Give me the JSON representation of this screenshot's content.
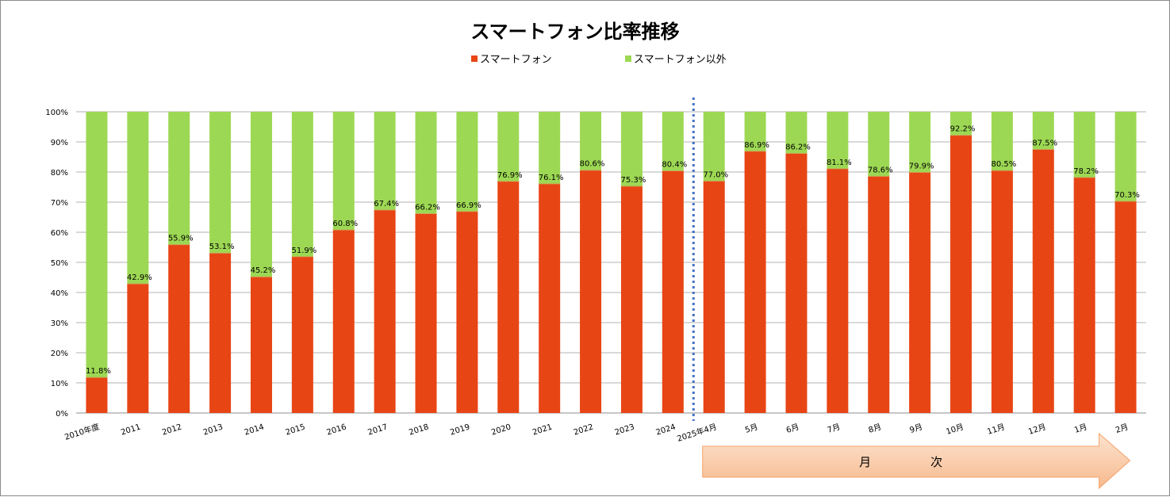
{
  "chart_data": {
    "type": "bar",
    "stacked": true,
    "percent_stacked": true,
    "title": "スマートフォン比率推移",
    "legend_position": "top",
    "categories": [
      "2010年度",
      "2011",
      "2012",
      "2013",
      "2014",
      "2015",
      "2016",
      "2017",
      "2018",
      "2019",
      "2020",
      "2021",
      "2022",
      "2023",
      "2024",
      "2025年4月",
      "5月",
      "6月",
      "7月",
      "8月",
      "9月",
      "10月",
      "11月",
      "12月",
      "1月",
      "2月"
    ],
    "series": [
      {
        "name": "スマートフォン",
        "color": "#E84515",
        "values": [
          11.8,
          42.9,
          55.9,
          53.1,
          45.2,
          51.9,
          60.8,
          67.4,
          66.2,
          66.9,
          76.9,
          76.1,
          80.6,
          75.3,
          80.4,
          77.0,
          86.9,
          86.2,
          81.1,
          78.6,
          79.9,
          92.2,
          80.5,
          87.5,
          78.2,
          70.3
        ]
      },
      {
        "name": "スマートフォン以外",
        "color": "#9DD854",
        "values": [
          88.2,
          57.1,
          44.1,
          46.9,
          54.8,
          48.1,
          39.2,
          32.6,
          33.8,
          33.1,
          23.1,
          23.9,
          19.4,
          24.7,
          19.6,
          23.0,
          13.1,
          13.8,
          18.9,
          21.4,
          20.1,
          7.8,
          19.5,
          12.5,
          21.8,
          29.7
        ]
      }
    ],
    "data_labels": [
      "11.8%",
      "42.9%",
      "55.9%",
      "53.1%",
      "45.2%",
      "51.9%",
      "60.8%",
      "67.4%",
      "66.2%",
      "66.9%",
      "76.9%",
      "76.1%",
      "80.6%",
      "75.3%",
      "80.4%",
      "77.0%",
      "86.9%",
      "86.2%",
      "81.1%",
      "78.6%",
      "79.9%",
      "92.2%",
      "80.5%",
      "87.5%",
      "78.2%",
      "70.3%"
    ],
    "ylim": [
      0,
      100
    ],
    "y_ticks": [
      "0%",
      "10%",
      "20%",
      "30%",
      "40%",
      "50%",
      "60%",
      "70%",
      "80%",
      "90%",
      "100%"
    ],
    "grid": true,
    "divider_after_category": "2024",
    "annotation_arrow": {
      "text": "月　次",
      "start_category": "2025年4月",
      "end_category": "2月"
    }
  }
}
